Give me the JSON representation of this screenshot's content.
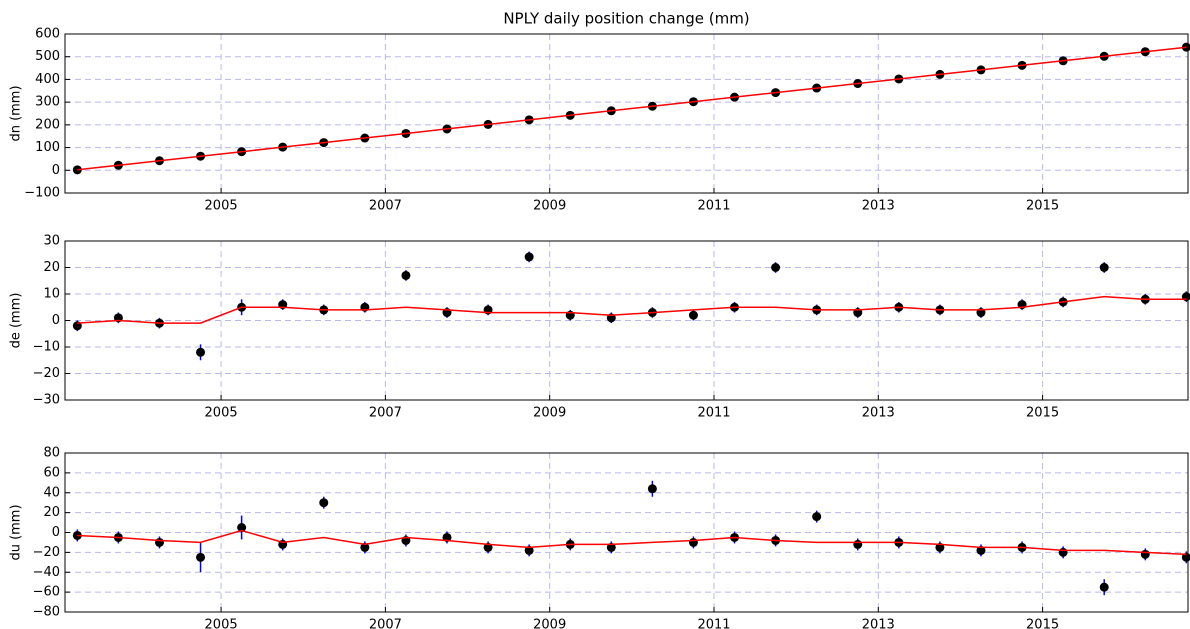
{
  "chart_data": [
    {
      "type": "scatter",
      "title": "NPLY daily position change (mm)",
      "y_label": "dn (mm)",
      "x": [
        2003.25,
        2003.75,
        2004.25,
        2004.75,
        2005.25,
        2005.75,
        2006.25,
        2006.75,
        2007.25,
        2007.75,
        2008.25,
        2008.75,
        2009.25,
        2009.75,
        2010.25,
        2010.75,
        2011.25,
        2011.75,
        2012.25,
        2012.75,
        2013.25,
        2013.75,
        2014.25,
        2014.75,
        2015.25,
        2015.75,
        2016.25,
        2016.75
      ],
      "series": [
        {
          "color": "#000000",
          "error_color": "#0000ff",
          "values": [
            2,
            22,
            42,
            62,
            82,
            102,
            122,
            142,
            162,
            182,
            202,
            222,
            242,
            262,
            282,
            302,
            322,
            342,
            362,
            382,
            402,
            422,
            442,
            462,
            482,
            502,
            522,
            542
          ],
          "errors": [
            3,
            3,
            3,
            3,
            3,
            3,
            3,
            3,
            3,
            3,
            3,
            3,
            3,
            3,
            3,
            3,
            3,
            3,
            3,
            3,
            3,
            3,
            3,
            3,
            3,
            3,
            3,
            3
          ]
        },
        {
          "color": "#ff0000",
          "values": [
            2,
            22,
            42,
            62,
            82,
            102,
            122,
            142,
            162,
            182,
            202,
            222,
            242,
            262,
            282,
            302,
            322,
            342,
            362,
            382,
            402,
            422,
            442,
            462,
            482,
            502,
            522,
            542
          ]
        }
      ],
      "xlim": [
        2003.1,
        2016.77
      ],
      "xticks": [
        2005,
        2007,
        2009,
        2011,
        2013,
        2015
      ],
      "ylim": [
        -100,
        600
      ],
      "yticks": [
        {
          "value": -100,
          "label": "−100"
        },
        0,
        100,
        200,
        300,
        400,
        500,
        600
      ],
      "grid": true
    },
    {
      "type": "scatter",
      "y_label": "de (mm)",
      "x": [
        2003.25,
        2003.75,
        2004.25,
        2004.75,
        2005.25,
        2005.75,
        2006.25,
        2006.75,
        2007.25,
        2007.75,
        2008.25,
        2008.75,
        2009.25,
        2009.75,
        2010.25,
        2010.75,
        2011.25,
        2011.75,
        2012.25,
        2012.75,
        2013.25,
        2013.75,
        2014.25,
        2014.75,
        2015.25,
        2015.75,
        2016.25,
        2016.75
      ],
      "series": [
        {
          "color": "#000000",
          "error_color": "#0000ff",
          "values": [
            -2,
            1,
            -1,
            -12,
            5,
            6,
            4,
            5,
            17,
            3,
            4,
            24,
            2,
            1,
            3,
            2,
            5,
            20,
            4,
            3,
            5,
            4,
            3,
            6,
            7,
            20,
            8,
            9
          ],
          "errors": [
            2,
            2,
            2,
            3,
            3,
            2,
            2,
            2,
            2,
            2,
            2,
            2,
            2,
            2,
            2,
            2,
            2,
            2,
            2,
            2,
            2,
            2,
            2,
            2,
            2,
            2,
            2,
            2
          ]
        },
        {
          "color": "#ff0000",
          "values": [
            -1,
            0,
            -1,
            -1,
            5,
            5,
            4,
            4,
            5,
            4,
            3,
            3,
            3,
            2,
            3,
            4,
            5,
            5,
            4,
            4,
            5,
            4,
            4,
            5,
            7,
            9,
            8,
            8
          ]
        }
      ],
      "xlim": [
        2003.1,
        2016.77
      ],
      "xticks": [
        2005,
        2007,
        2009,
        2011,
        2013,
        2015
      ],
      "ylim": [
        -30,
        30
      ],
      "yticks": [
        {
          "value": -30,
          "label": "−30"
        },
        {
          "value": -20,
          "label": "−20"
        },
        {
          "value": -10,
          "label": "−10"
        },
        0,
        10,
        20,
        30
      ],
      "grid": true
    },
    {
      "type": "scatter",
      "y_label": "du (mm)",
      "x": [
        2003.25,
        2003.75,
        2004.25,
        2004.75,
        2005.25,
        2005.75,
        2006.25,
        2006.75,
        2007.25,
        2007.75,
        2008.25,
        2008.75,
        2009.25,
        2009.75,
        2010.25,
        2010.75,
        2011.25,
        2011.75,
        2012.25,
        2012.75,
        2013.25,
        2013.75,
        2014.25,
        2014.75,
        2015.25,
        2015.75,
        2016.25,
        2016.75
      ],
      "series": [
        {
          "color": "#000000",
          "error_color": "#0000ff",
          "values": [
            -3,
            -5,
            -10,
            -25,
            5,
            -12,
            30,
            -15,
            -8,
            -5,
            -15,
            -18,
            -12,
            -15,
            44,
            -10,
            -5,
            -8,
            16,
            -12,
            -10,
            -15,
            -18,
            -15,
            -20,
            -55,
            -22,
            -25
          ],
          "errors": [
            6,
            6,
            6,
            15,
            12,
            6,
            6,
            6,
            6,
            6,
            6,
            6,
            6,
            6,
            8,
            6,
            6,
            6,
            6,
            6,
            6,
            6,
            6,
            6,
            6,
            8,
            6,
            6
          ]
        },
        {
          "color": "#ff0000",
          "values": [
            -3,
            -5,
            -8,
            -10,
            2,
            -10,
            -5,
            -12,
            -5,
            -8,
            -12,
            -15,
            -12,
            -12,
            -10,
            -8,
            -5,
            -8,
            -10,
            -10,
            -10,
            -12,
            -15,
            -15,
            -18,
            -18,
            -20,
            -22
          ]
        }
      ],
      "xlim": [
        2003.1,
        2016.77
      ],
      "xticks": [
        2005,
        2007,
        2009,
        2011,
        2013,
        2015
      ],
      "ylim": [
        -80,
        80
      ],
      "yticks": [
        {
          "value": -80,
          "label": "−80"
        },
        {
          "value": -60,
          "label": "−60"
        },
        {
          "value": -40,
          "label": "−40"
        },
        {
          "value": -20,
          "label": "−20"
        },
        0,
        20,
        40,
        60,
        80
      ],
      "grid": true
    }
  ]
}
